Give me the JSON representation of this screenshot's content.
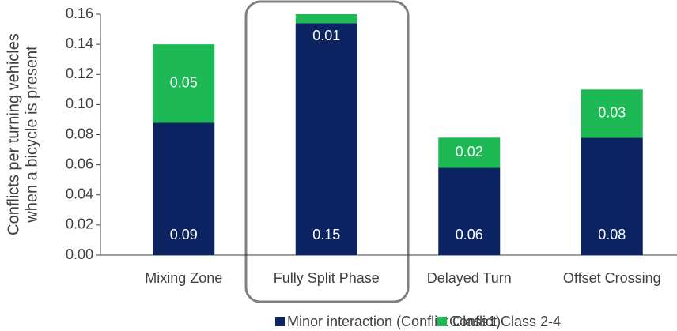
{
  "chart_data": {
    "type": "stacked_bar",
    "ylabel": [
      "Conflicts per turning vehicles",
      "when a bicycle is present"
    ],
    "categories": [
      "Mixing Zone",
      "Fully Split Phase",
      "Delayed Turn",
      "Offset Crossing"
    ],
    "series": [
      {
        "name": "Minor interaction (Conflict  Class1)",
        "color": "#0c2461",
        "values": [
          0.088,
          0.154,
          0.058,
          0.078
        ],
        "value_labels": [
          "0.09",
          "0.15",
          "0.06",
          "0.08"
        ]
      },
      {
        "name": "Conflict Class 2-4",
        "color": "#1db954",
        "values": [
          0.052,
          0.006,
          0.02,
          0.032
        ],
        "value_labels": [
          "0.05",
          "0.01",
          "0.02",
          "0.03"
        ]
      }
    ],
    "ylim": [
      0,
      0.16
    ],
    "yticks": [
      {
        "value": 0,
        "label": "0.00"
      },
      {
        "value": 0.02,
        "label": "0.02"
      },
      {
        "value": 0.04,
        "label": "0.04"
      },
      {
        "value": 0.06,
        "label": "0.06"
      },
      {
        "value": 0.08,
        "label": "0.08"
      },
      {
        "value": 0.1,
        "label": "0.10"
      },
      {
        "value": 0.12,
        "label": "0.12"
      },
      {
        "value": 0.14,
        "label": "0.14"
      },
      {
        "value": 0.16,
        "label": "0.16"
      }
    ],
    "grid": false,
    "legend": "bottom"
  }
}
